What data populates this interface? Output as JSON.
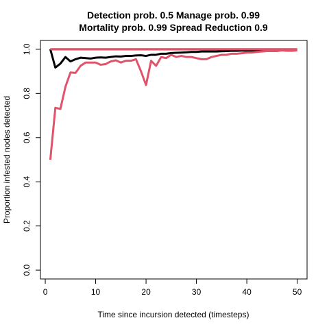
{
  "chart_data": {
    "type": "line",
    "title_line1": "Detection prob. 0.5 Manage prob. 0.99",
    "title_line2": "Mortality prob. 0.99 Spread Reduction 0.9",
    "xlabel": "Time since incursion detected (timesteps)",
    "ylabel": "Proportion infested nodes detected",
    "xlim": [
      1,
      50
    ],
    "ylim": [
      0,
      1
    ],
    "xticks": [
      0,
      10,
      20,
      30,
      40,
      50
    ],
    "yticks": [
      0.0,
      0.2,
      0.4,
      0.6,
      0.8,
      1.0
    ],
    "xtick_labels": [
      "0",
      "10",
      "20",
      "30",
      "40",
      "50"
    ],
    "ytick_labels": [
      "0.0",
      "0.2",
      "0.4",
      "0.6",
      "0.8",
      "1.0"
    ],
    "series": [
      {
        "name": "black-flat",
        "color": "#000000",
        "x": [
          1,
          50
        ],
        "y": [
          1.0,
          1.0
        ]
      },
      {
        "name": "black",
        "color": "#000000",
        "x": [
          1,
          2,
          3,
          4,
          5,
          6,
          7,
          8,
          9,
          10,
          11,
          12,
          13,
          14,
          15,
          16,
          17,
          18,
          19,
          20,
          21,
          22,
          23,
          24,
          25,
          26,
          27,
          28,
          29,
          30,
          31,
          32,
          33,
          34,
          35,
          36,
          37,
          38,
          39,
          40,
          41,
          42,
          43,
          44,
          45,
          46,
          47,
          48,
          49,
          50
        ],
        "y": [
          1.0,
          0.917,
          0.935,
          0.965,
          0.945,
          0.955,
          0.962,
          0.96,
          0.958,
          0.962,
          0.963,
          0.962,
          0.965,
          0.968,
          0.967,
          0.97,
          0.97,
          0.972,
          0.973,
          0.97,
          0.975,
          0.975,
          0.98,
          0.98,
          0.983,
          0.984,
          0.985,
          0.986,
          0.988,
          0.988,
          0.99,
          0.99,
          0.99,
          0.99,
          0.991,
          0.992,
          0.993,
          0.993,
          0.994,
          0.994,
          0.994,
          0.995,
          0.995,
          0.995,
          0.996,
          0.996,
          0.997,
          0.997,
          0.998,
          0.998
        ]
      },
      {
        "name": "red-flat",
        "color": "#DF536B",
        "x": [
          1,
          50
        ],
        "y": [
          1.0,
          1.0
        ]
      },
      {
        "name": "red",
        "color": "#DF536B",
        "x": [
          1,
          2,
          3,
          4,
          5,
          6,
          7,
          8,
          9,
          10,
          11,
          12,
          13,
          14,
          15,
          16,
          17,
          18,
          19,
          20,
          21,
          22,
          23,
          24,
          25,
          26,
          27,
          28,
          29,
          30,
          31,
          32,
          33,
          34,
          35,
          36,
          37,
          38,
          39,
          40,
          41,
          42,
          43,
          44,
          45,
          46,
          47,
          48,
          49,
          50
        ],
        "y": [
          0.5,
          0.735,
          0.73,
          0.83,
          0.895,
          0.893,
          0.925,
          0.94,
          0.94,
          0.94,
          0.93,
          0.933,
          0.945,
          0.95,
          0.94,
          0.948,
          0.948,
          0.955,
          0.9,
          0.838,
          0.948,
          0.925,
          0.965,
          0.96,
          0.975,
          0.965,
          0.97,
          0.965,
          0.965,
          0.96,
          0.955,
          0.955,
          0.965,
          0.97,
          0.975,
          0.975,
          0.98,
          0.98,
          0.982,
          0.985,
          0.985,
          0.988,
          0.99,
          0.992,
          0.992,
          0.992,
          0.995,
          0.993,
          0.993,
          0.995
        ]
      }
    ]
  }
}
